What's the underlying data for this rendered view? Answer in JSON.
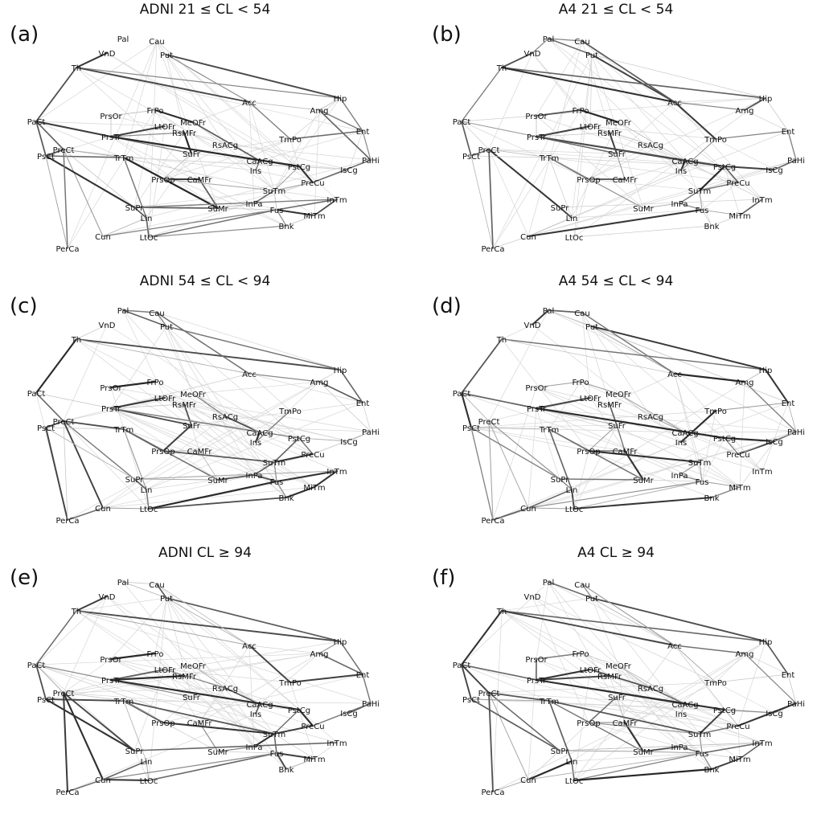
{
  "panels": [
    {
      "id": "a",
      "letter": "(a)",
      "title": "ADNI 21 ≤  CL  < 54",
      "seed": 11,
      "variant": 0
    },
    {
      "id": "b",
      "letter": "(b)",
      "title": "A4 21 ≤  CL  < 54",
      "seed": 23,
      "variant": 1
    },
    {
      "id": "c",
      "letter": "(c)",
      "title": "ADNI 54 ≤  CL  < 94",
      "seed": 37,
      "variant": 2
    },
    {
      "id": "d",
      "letter": "(d)",
      "title": "A4 54 ≤  CL  < 94",
      "seed": 41,
      "variant": 3
    },
    {
      "id": "e",
      "letter": "(e)",
      "title": "ADNI CL  ≥ 94",
      "seed": 53,
      "variant": 4
    },
    {
      "id": "f",
      "letter": "(f)",
      "title": "A4 CL  ≥ 94",
      "seed": 67,
      "variant": 5
    }
  ],
  "nodes": [
    "Pal",
    "Cau",
    "VnD",
    "Put",
    "Th",
    "Acc",
    "Hip",
    "Amg",
    "Ent",
    "PaCt",
    "PrsOr",
    "FrPo",
    "MeOFr",
    "LtOFr",
    "RsMFr",
    "PrsTr",
    "TmPo",
    "PreCt",
    "PsCt",
    "TrTm",
    "SuFr",
    "RsACg",
    "CaACg",
    "Ins",
    "PstCg",
    "IsCg",
    "PaHi",
    "PrsOp",
    "CaMFr",
    "PreCu",
    "SuTm",
    "InPa",
    "SuMr",
    "SuPr",
    "Fus",
    "InTm",
    "MiTm",
    "Lin",
    "Bnk",
    "Cun",
    "LtOc",
    "PerCa"
  ]
}
